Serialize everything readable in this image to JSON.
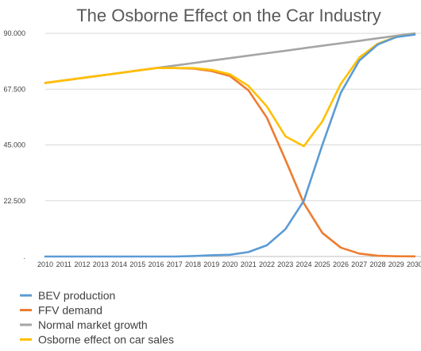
{
  "chart_data": {
    "type": "line",
    "title": "The Osborne Effect on the Car Industry",
    "x": [
      "2010",
      "2011",
      "2012",
      "2013",
      "2014",
      "2015",
      "2016",
      "2017",
      "2018",
      "2019",
      "2020",
      "2021",
      "2022",
      "2023",
      "2024",
      "2025",
      "2026",
      "2027",
      "2028",
      "2029",
      "2030"
    ],
    "y_ticks": [
      ".",
      "22.500",
      "45.000",
      "67.500",
      "90.000"
    ],
    "ylim": [
      0,
      90000
    ],
    "grid": true,
    "legend_position": "bottom",
    "series": [
      {
        "name": "BEV production",
        "color": "#5b9bd5",
        "values": [
          0,
          0,
          0,
          0,
          0,
          0,
          0,
          0,
          200,
          500,
          700,
          1800,
          4500,
          11000,
          22500,
          45000,
          66000,
          79000,
          85500,
          88500,
          89500
        ]
      },
      {
        "name": "FFV demand",
        "color": "#ed7d31",
        "values": [
          70000,
          71000,
          72000,
          73000,
          74000,
          75000,
          76000,
          76000,
          75800,
          74800,
          72800,
          67000,
          56000,
          39000,
          21500,
          9500,
          3600,
          1200,
          300,
          100,
          50
        ]
      },
      {
        "name": "Normal market growth",
        "color": "#a5a5a5",
        "values": [
          70000,
          71000,
          72000,
          73000,
          74000,
          75000,
          76000,
          77000,
          78000,
          79000,
          80000,
          81000,
          82000,
          83000,
          84000,
          85000,
          86000,
          87000,
          88000,
          89000,
          90000
        ]
      },
      {
        "name": "Osborne effect on car sales",
        "color": "#ffc000",
        "values": [
          70000,
          71000,
          72000,
          73000,
          74000,
          75000,
          76000,
          76000,
          76000,
          75300,
          73500,
          68800,
          60500,
          48500,
          44500,
          54500,
          69600,
          80200,
          85800,
          88600,
          89550
        ]
      }
    ]
  }
}
